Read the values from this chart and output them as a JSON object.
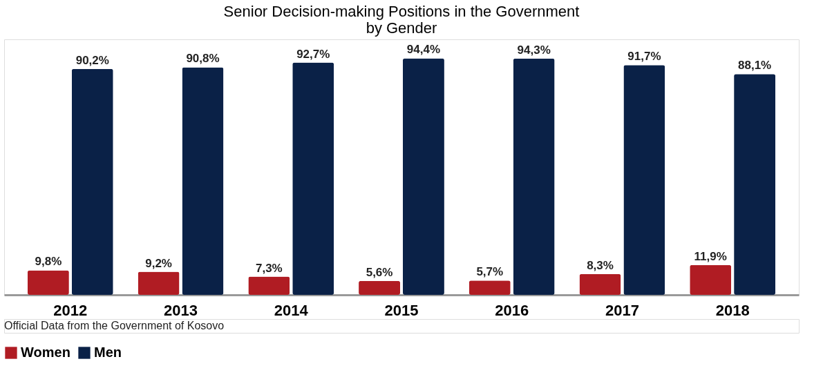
{
  "chart_data": {
    "type": "bar",
    "title": [
      "Senior Decision-making Positions in the Government",
      "by Gender"
    ],
    "categories": [
      "2012",
      "2013",
      "2014",
      "2015",
      "2016",
      "2017",
      "2018"
    ],
    "series": [
      {
        "name": "Women",
        "color": "#b01c23",
        "values": [
          9.8,
          9.2,
          7.3,
          5.6,
          5.7,
          8.3,
          11.9
        ],
        "value_labels": [
          "9,8%",
          "9,2%",
          "7,3%",
          "5,6%",
          "5,7%",
          "8,3%",
          "11,9%"
        ]
      },
      {
        "name": "Men",
        "color": "#0a2147",
        "values": [
          90.2,
          90.8,
          92.7,
          94.4,
          94.3,
          91.7,
          88.1
        ],
        "value_labels": [
          "90,2%",
          "90,8%",
          "92,7%",
          "94,4%",
          "94,3%",
          "91,7%",
          "88,1%"
        ]
      }
    ],
    "legend": "bottom",
    "grid": false,
    "annotations": [
      "Official Data from the Government of Kosovo"
    ]
  }
}
